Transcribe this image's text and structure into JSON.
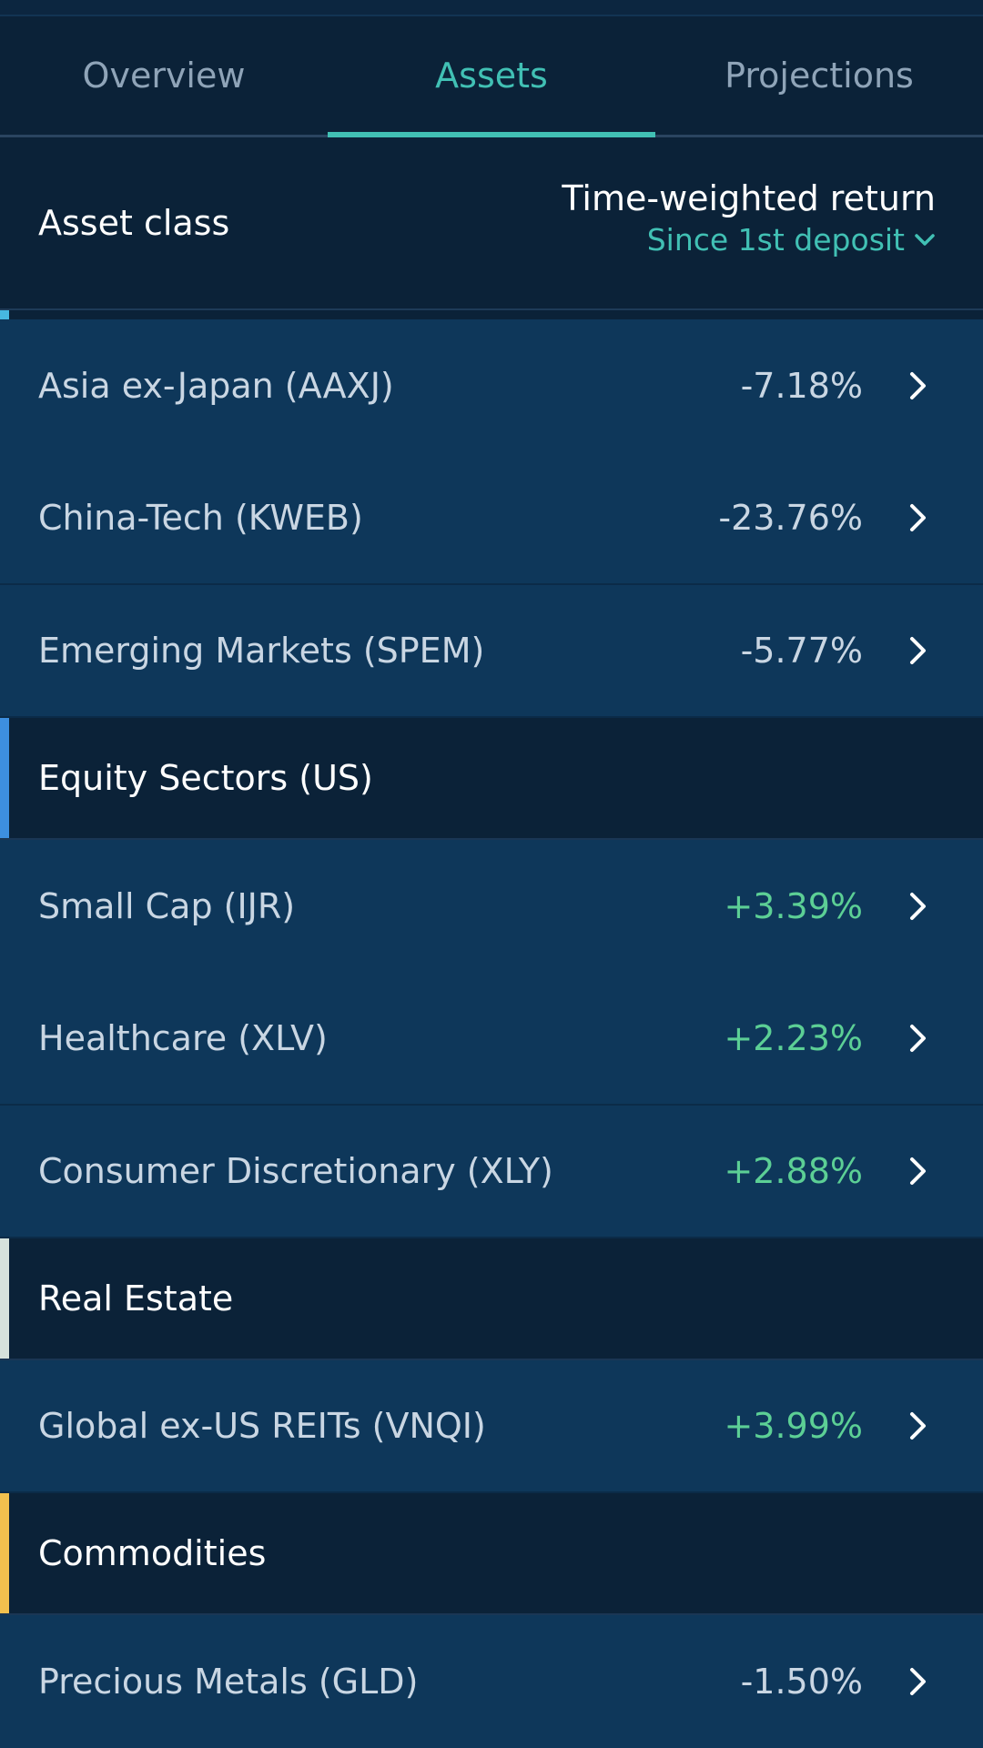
{
  "tabs": [
    {
      "label": "Overview",
      "active": false
    },
    {
      "label": "Assets",
      "active": true
    },
    {
      "label": "Projections",
      "active": false
    }
  ],
  "header": {
    "asset_class": "Asset class",
    "return_title": "Time-weighted return",
    "period": "Since 1st deposit"
  },
  "colors": {
    "accent": "#41c0b4",
    "positive": "#5ccf95",
    "group_emerging": "#47b8e0",
    "group_equity_sectors": "#3d8fe0",
    "group_real_estate": "#d6e2dc",
    "group_commodities": "#f2c14e"
  },
  "rows_a": [
    {
      "name": "Asia ex-Japan (AAXJ)",
      "value": "-7.18%"
    },
    {
      "name": "China-Tech (KWEB)",
      "value": "-23.76%"
    },
    {
      "name": "Emerging Markets (SPEM)",
      "value": "-5.77%"
    }
  ],
  "groups": {
    "equity_sectors": "Equity Sectors (US)",
    "real_estate": "Real Estate",
    "commodities": "Commodities"
  },
  "rows_b": [
    {
      "name": "Small Cap (IJR)",
      "value": "+3.39%"
    },
    {
      "name": "Healthcare (XLV)",
      "value": "+2.23%"
    },
    {
      "name": "Consumer Discretionary (XLY)",
      "value": "+2.88%"
    }
  ],
  "rows_c": [
    {
      "name": "Global ex-US REITs (VNQI)",
      "value": "+3.99%"
    }
  ],
  "rows_d": [
    {
      "name": "Precious Metals (GLD)",
      "value": "-1.50%"
    }
  ],
  "icons": {
    "row_chevron": "chevron-right-icon",
    "period_chevron": "chevron-down-icon"
  }
}
